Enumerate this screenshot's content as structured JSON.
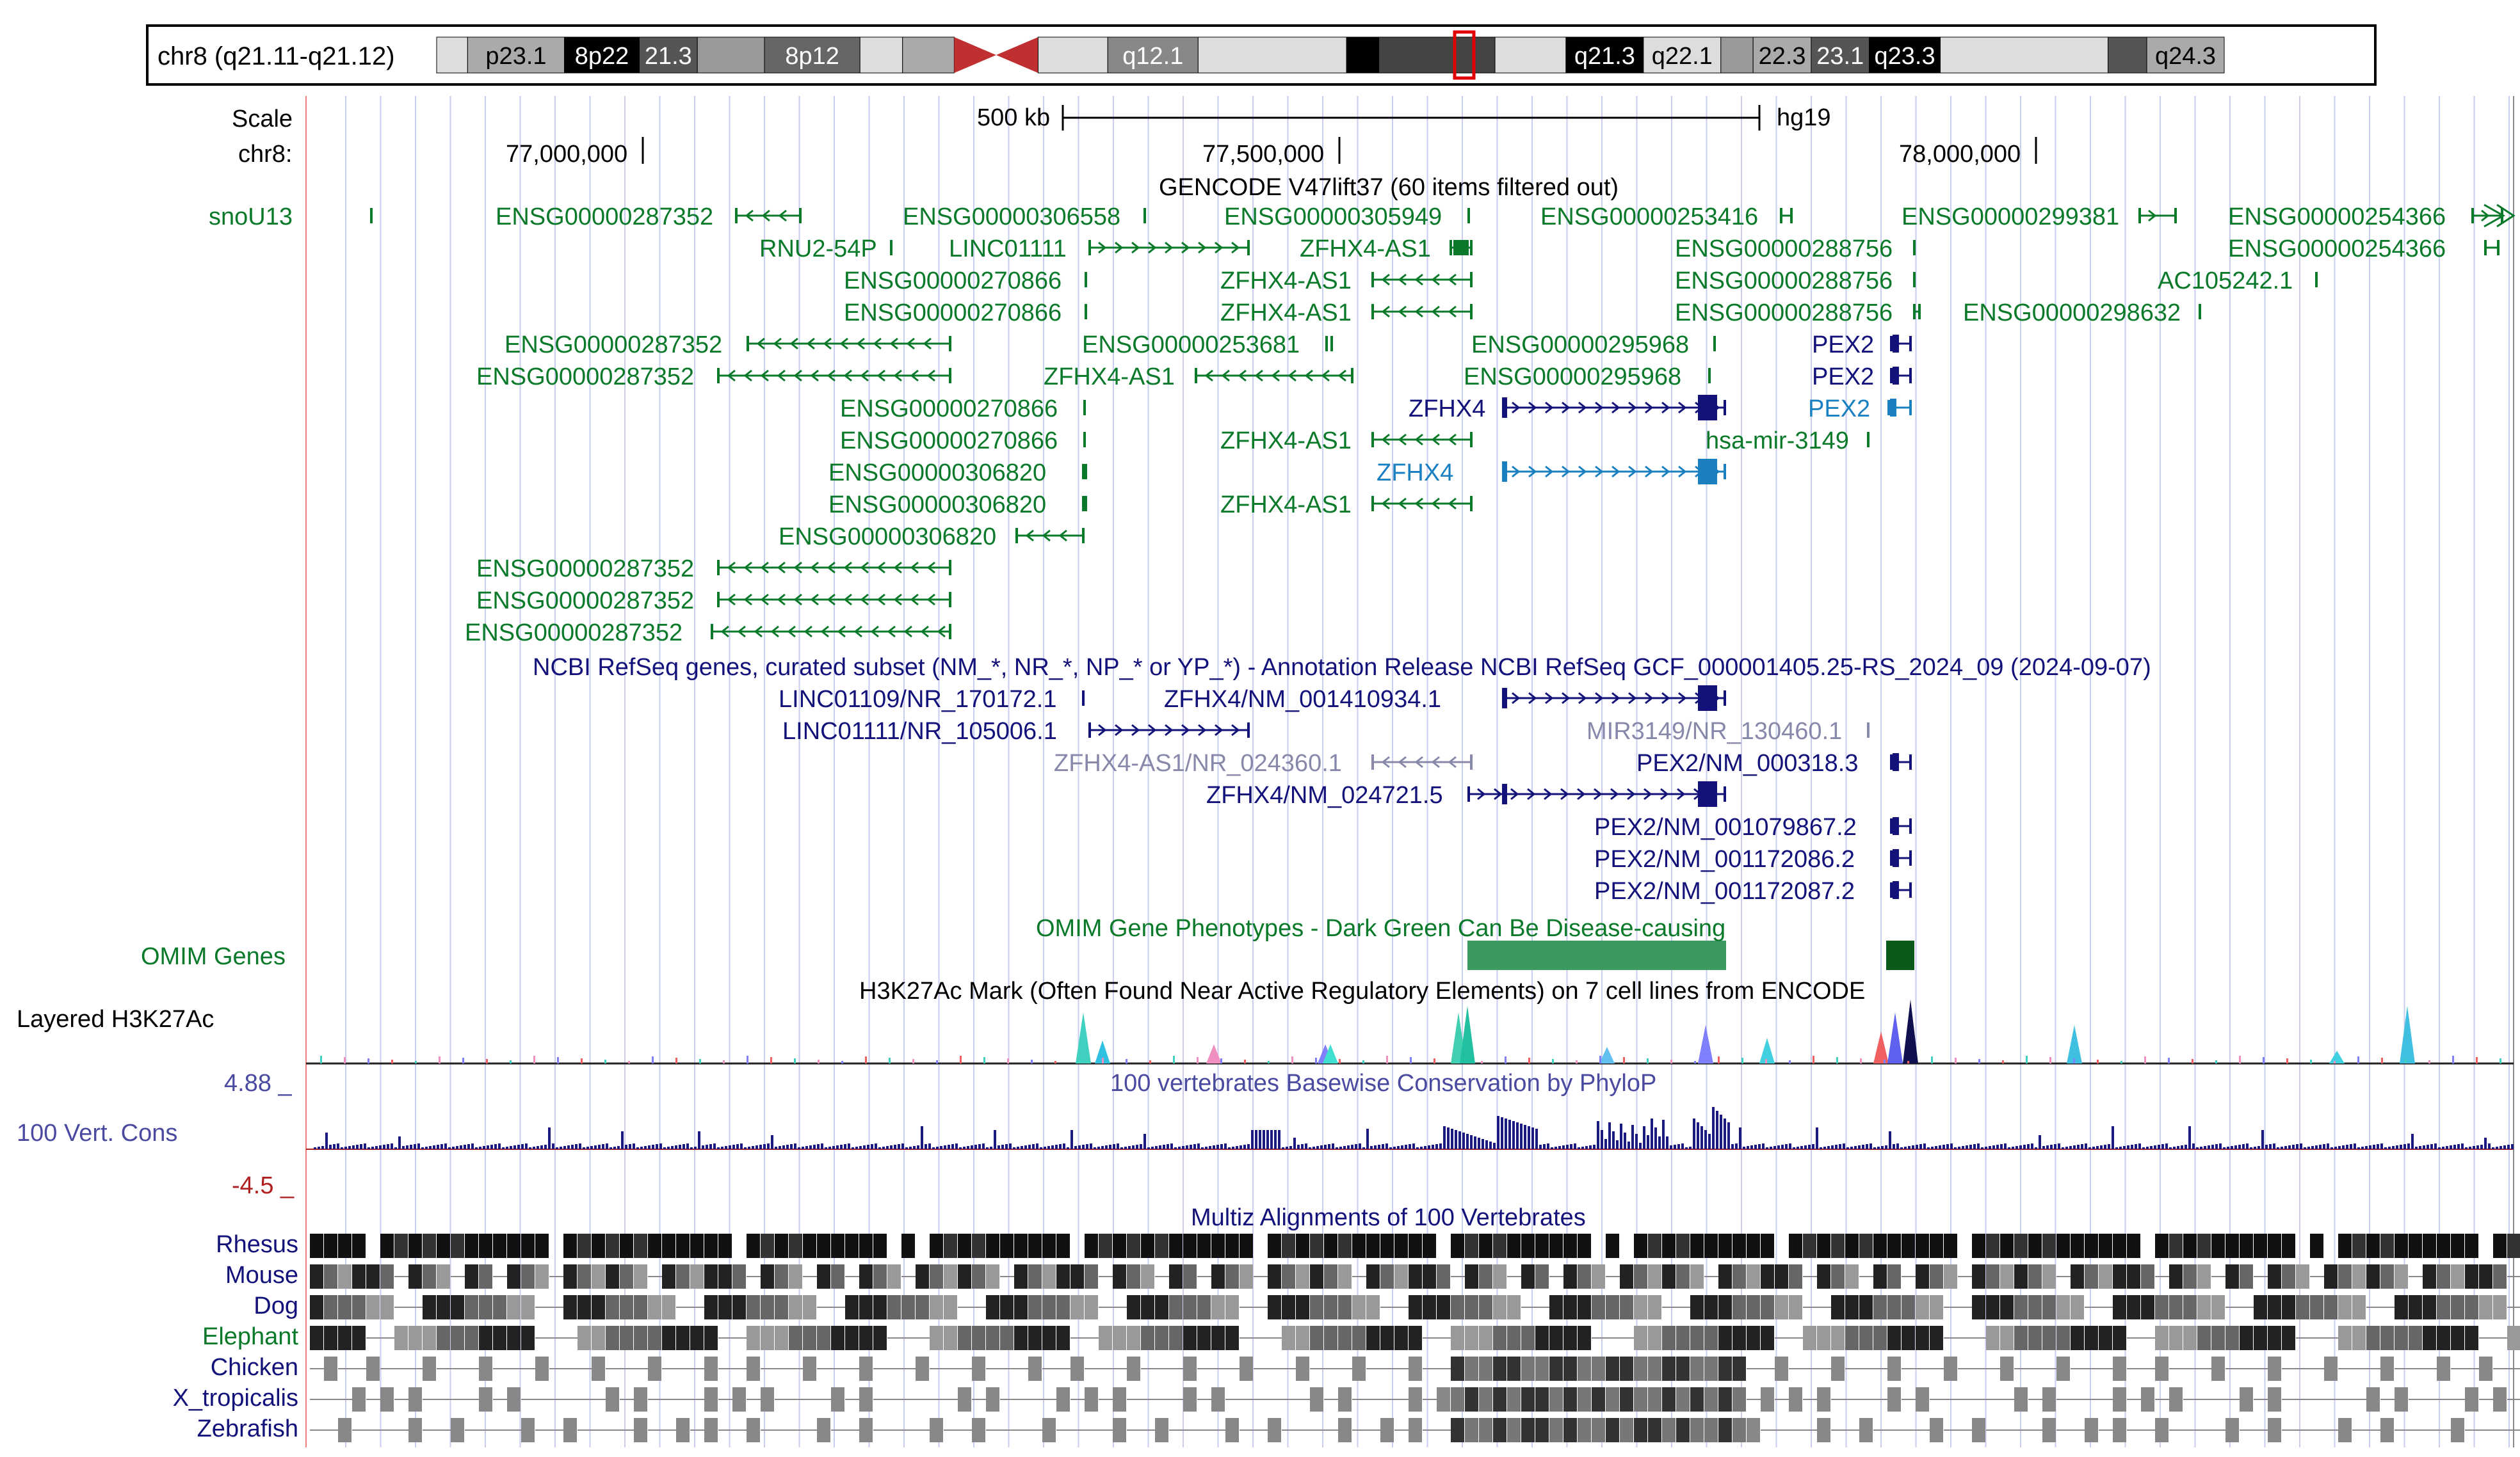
{
  "ideogram": {
    "chrom_label": "chr8 (q21.11-q21.12)",
    "bands": [
      {
        "label": "",
        "shade": "#dddddd"
      },
      {
        "label": "p23.1",
        "shade": "#aaaaaa"
      },
      {
        "label": "8p22",
        "shade": "#000000"
      },
      {
        "label": "21.3",
        "shade": "#555555"
      },
      {
        "label": "",
        "shade": "#999999"
      },
      {
        "label": "8p12",
        "shade": "#666666"
      },
      {
        "label": "",
        "shade": "#dddddd"
      },
      {
        "label": "",
        "shade": "#aaaaaa"
      },
      {
        "label": "",
        "shade": "#cc3333"
      },
      {
        "label": "",
        "shade": "#dddddd"
      },
      {
        "label": "q12.1",
        "shade": "#888888"
      },
      {
        "label": "",
        "shade": "#dddddd"
      },
      {
        "label": "",
        "shade": "#000000"
      },
      {
        "label": "",
        "shade": "#444444"
      },
      {
        "label": "",
        "shade": "#dddddd"
      },
      {
        "label": "q21.3",
        "shade": "#000000"
      },
      {
        "label": "q22.1",
        "shade": "#dddddd"
      },
      {
        "label": "",
        "shade": "#999999"
      },
      {
        "label": "22.3",
        "shade": "#aaaaaa"
      },
      {
        "label": "23.1",
        "shade": "#555555"
      },
      {
        "label": "q23.3",
        "shade": "#000000"
      },
      {
        "label": "",
        "shade": "#dddddd"
      },
      {
        "label": "",
        "shade": "#555555"
      },
      {
        "label": "q24.3",
        "shade": "#aaaaaa"
      }
    ]
  },
  "ruler": {
    "scale_label": "Scale",
    "scale_value": "500 kb",
    "assembly": "hg19",
    "chrom_label": "chr8:",
    "ticks": [
      "77,000,000",
      "77,500,000",
      "78,000,000"
    ]
  },
  "tracks": {
    "snou13_label": "snoU13",
    "gencode_title": "GENCODE V47lift37 (60 items filtered out)",
    "gencode_genes": [
      {
        "name": "ENSG00000287352"
      },
      {
        "name": "ENSG00000306558"
      },
      {
        "name": "ENSG00000305949"
      },
      {
        "name": "ENSG00000253416"
      },
      {
        "name": "ENSG00000299381"
      },
      {
        "name": "ENSG00000254366"
      },
      {
        "name": "RNU2-54P"
      },
      {
        "name": "LINC01111"
      },
      {
        "name": "ZFHX4-AS1"
      },
      {
        "name": "ENSG00000288756"
      },
      {
        "name": "ENSG00000254366"
      },
      {
        "name": "ENSG00000270866"
      },
      {
        "name": "ZFHX4-AS1"
      },
      {
        "name": "ENSG00000288756"
      },
      {
        "name": "AC105242.1"
      },
      {
        "name": "ENSG00000270866"
      },
      {
        "name": "ZFHX4-AS1"
      },
      {
        "name": "ENSG00000288756"
      },
      {
        "name": "ENSG00000298632"
      },
      {
        "name": "ENSG00000287352"
      },
      {
        "name": "ENSG00000253681"
      },
      {
        "name": "ENSG00000295968"
      },
      {
        "name": "PEX2"
      },
      {
        "name": "ENSG00000287352"
      },
      {
        "name": "ZFHX4-AS1"
      },
      {
        "name": "ENSG00000295968"
      },
      {
        "name": "PEX2"
      },
      {
        "name": "ENSG00000270866"
      },
      {
        "name": "ZFHX4"
      },
      {
        "name": "PEX2"
      },
      {
        "name": "ENSG00000270866"
      },
      {
        "name": "ZFHX4-AS1"
      },
      {
        "name": "hsa-mir-3149"
      },
      {
        "name": "ENSG00000306820"
      },
      {
        "name": "ZFHX4"
      },
      {
        "name": "ENSG00000306820"
      },
      {
        "name": "ZFHX4-AS1"
      },
      {
        "name": "ENSG00000306820"
      },
      {
        "name": "ENSG00000287352"
      },
      {
        "name": "ENSG00000287352"
      },
      {
        "name": "ENSG00000287352"
      }
    ],
    "refseq_title": "NCBI RefSeq genes, curated subset (NM_*, NR_*, NP_* or YP_*) - Annotation Release NCBI RefSeq GCF_000001405.25-RS_2024_09 (2024-09-07)",
    "refseq_genes": [
      {
        "name": "LINC01109/NR_170172.1"
      },
      {
        "name": "ZFHX4/NM_001410934.1"
      },
      {
        "name": "LINC01111/NR_105006.1"
      },
      {
        "name": "MIR3149/NR_130460.1"
      },
      {
        "name": "ZFHX4-AS1/NR_024360.1"
      },
      {
        "name": "PEX2/NM_000318.3"
      },
      {
        "name": "ZFHX4/NM_024721.5"
      },
      {
        "name": "PEX2/NM_001079867.2"
      },
      {
        "name": "PEX2/NM_001172086.2"
      },
      {
        "name": "PEX2/NM_001172087.2"
      }
    ],
    "omim_title": "OMIM Gene Phenotypes - Dark Green Can Be Disease-causing",
    "omim_label": "OMIM Genes",
    "h3k27ac_title": "H3K27Ac Mark (Often Found Near Active Regulatory Elements) on 7 cell lines from ENCODE",
    "h3k27ac_label": "Layered H3K27Ac",
    "phylop_title": "100 vertebrates Basewise Conservation by PhyloP",
    "phylop_label": "100 Vert. Cons",
    "phylop_max": "4.88 _",
    "phylop_min": "-4.5 _",
    "multiz_title": "Multiz Alignments of 100 Vertebrates",
    "species": [
      "Rhesus",
      "Mouse",
      "Dog",
      "Elephant",
      "Chicken",
      "X_tropicalis",
      "Zebrafish"
    ]
  },
  "colors": {
    "gencode_green": "#0a7a2a",
    "refseq_navy": "#12127a",
    "refseq_light": "#8888aa",
    "zfhx4_blue": "#1a80c0",
    "phylop_navy": "#1a1a80",
    "phylop_red": "#b02020",
    "omim_light": "#3a9a60",
    "omim_dark": "#0a5a1a"
  }
}
